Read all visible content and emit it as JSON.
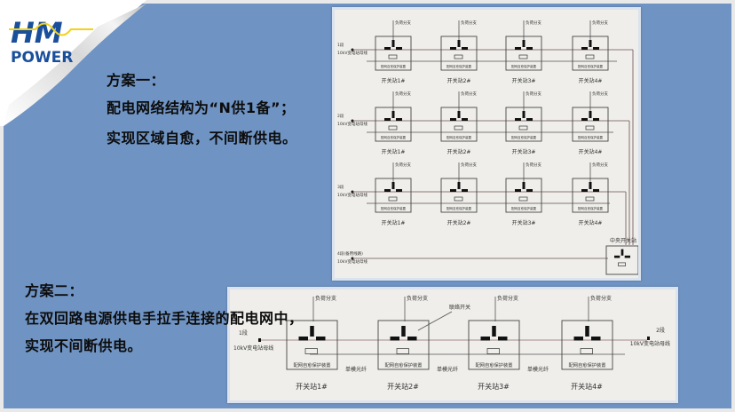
{
  "logo": {
    "line1": "HM",
    "line2": "POWER"
  },
  "colors": {
    "slide_bg": "#6f93c2",
    "logo_blue": "#1a4f9c",
    "logo_yellow": "#f2d21a",
    "diagram_bg": "#efeeea"
  },
  "plan1": {
    "title": "方案一：",
    "line1": "配电网络结构为“N供1备”；",
    "line2": "实现区域自愈，不间断供电。"
  },
  "plan2": {
    "title": "方案二：",
    "line1": "在双回路电源供电手拉手连接的配电网中，",
    "line2": "实现不间断供电。"
  },
  "diagram1": {
    "rows": [
      {
        "segment": "1段",
        "bus": "10kV变电站母线"
      },
      {
        "segment": "2段",
        "bus": "10kV变电站母线"
      },
      {
        "segment": "3段",
        "bus": "10kV变电站母线"
      }
    ],
    "stations": [
      "开关站1#",
      "开关站2#",
      "开关站3#",
      "开关站4#"
    ],
    "load_label": "负荷分支",
    "device_label": "配网自愈保护装置",
    "backup": {
      "segment": "4段(备用线路)",
      "bus": "10kV变电站母线"
    },
    "central_station": "中央开关站"
  },
  "diagram2": {
    "left_bus": {
      "segment": "1段",
      "bus": "10kV变电站母线"
    },
    "right_bus": {
      "segment": "2段",
      "bus": "10kV变电站母线"
    },
    "stations": [
      "开关站1#",
      "开关站2#",
      "开关站3#",
      "开关站4#"
    ],
    "load_label": "负荷分支",
    "device_label": "配网自愈保护装置",
    "tie_switch": "联络开关",
    "fiber": "单模光纤"
  }
}
